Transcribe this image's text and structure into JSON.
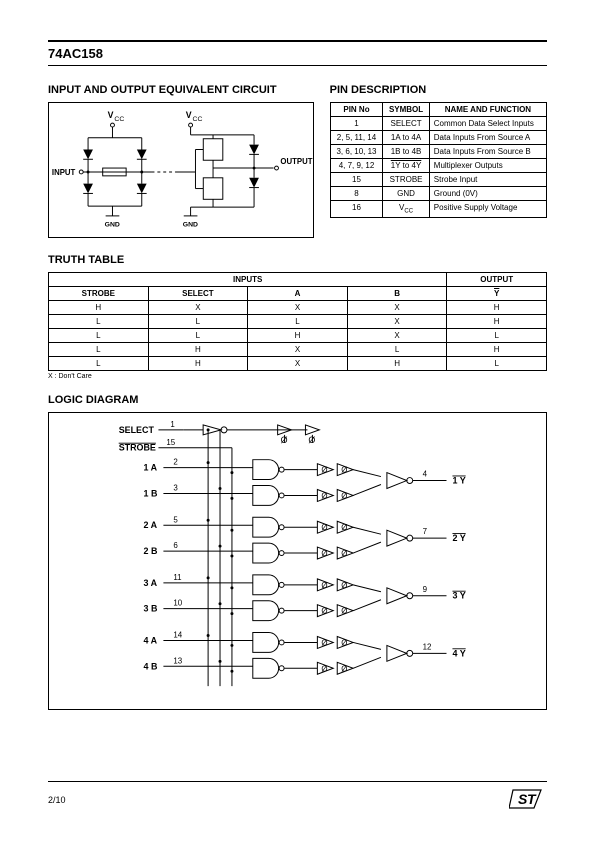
{
  "part_number": "74AC158",
  "sections": {
    "io_circuit_title": "INPUT AND OUTPUT EQUIVALENT CIRCUIT",
    "pin_desc_title": "PIN DESCRIPTION",
    "truth_table_title": "TRUTH TABLE",
    "logic_diagram_title": "LOGIC DIAGRAM"
  },
  "io_circuit": {
    "vcc_label": "V",
    "vcc_sub": "CC",
    "input_label": "INPUT",
    "output_label": "OUTPUT",
    "gnd_label": "GND"
  },
  "pin_table": {
    "headers": [
      "PIN No",
      "SYMBOL",
      "NAME AND FUNCTION"
    ],
    "rows": [
      {
        "pin": "1",
        "symbol": "SELECT",
        "name": "Common Data Select Inputs"
      },
      {
        "pin": "2, 5, 11, 14",
        "symbol": "1A to 4A",
        "name": "Data Inputs From Source A"
      },
      {
        "pin": "3, 6, 10, 13",
        "symbol": "1B to 4B",
        "name": "Data Inputs From Source B"
      },
      {
        "pin": "4, 7, 9, 12",
        "symbol_overline": "1Y to 4Y",
        "name": "Multiplexer Outputs"
      },
      {
        "pin": "15",
        "symbol": "STROBE",
        "name": "Strobe Input"
      },
      {
        "pin": "8",
        "symbol": "GND",
        "name": "Ground (0V)"
      },
      {
        "pin": "16",
        "symbol_vcc": true,
        "name": "Positive Supply Voltage"
      }
    ]
  },
  "truth_table": {
    "inputs_header": "INPUTS",
    "output_header": "OUTPUT",
    "sub_headers": [
      "STROBE",
      "SELECT",
      "A",
      "B"
    ],
    "output_sub": "Y",
    "rows": [
      [
        "H",
        "X",
        "X",
        "X",
        "H"
      ],
      [
        "L",
        "L",
        "L",
        "X",
        "H"
      ],
      [
        "L",
        "L",
        "H",
        "X",
        "L"
      ],
      [
        "L",
        "H",
        "X",
        "L",
        "H"
      ],
      [
        "L",
        "H",
        "X",
        "H",
        "L"
      ]
    ],
    "note": "X : Don't Care"
  },
  "logic_diagram": {
    "inputs": [
      {
        "label": "SELECT",
        "pin": "1",
        "overline": false
      },
      {
        "label": "STROBE",
        "pin": "15",
        "overline": true
      },
      {
        "label": "1 A",
        "pin": "2"
      },
      {
        "label": "1 B",
        "pin": "3"
      },
      {
        "label": "2 A",
        "pin": "5"
      },
      {
        "label": "2 B",
        "pin": "6"
      },
      {
        "label": "3 A",
        "pin": "11"
      },
      {
        "label": "3 B",
        "pin": "10"
      },
      {
        "label": "4 A",
        "pin": "14"
      },
      {
        "label": "4 B",
        "pin": "13"
      }
    ],
    "outputs": [
      {
        "label": "1 Y",
        "pin": "4"
      },
      {
        "label": "2 Y",
        "pin": "7"
      },
      {
        "label": "3 Y",
        "pin": "9"
      },
      {
        "label": "4 Y",
        "pin": "12"
      }
    ]
  },
  "footer": {
    "page": "2/10",
    "logo": "ST"
  }
}
